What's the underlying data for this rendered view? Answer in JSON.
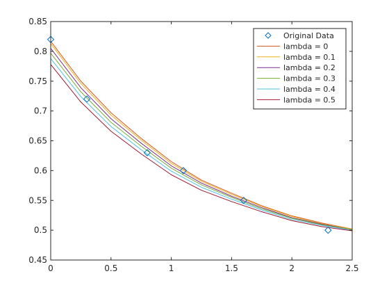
{
  "chart_data": {
    "type": "line",
    "title": "",
    "xlabel": "",
    "ylabel": "",
    "xlim": [
      0,
      2.5
    ],
    "ylim": [
      0.45,
      0.85
    ],
    "grid": false,
    "legend_position": "top-right",
    "x_ticks": [
      {
        "value": 0,
        "label": "0"
      },
      {
        "value": 0.5,
        "label": "0.5"
      },
      {
        "value": 1,
        "label": "1"
      },
      {
        "value": 1.5,
        "label": "1.5"
      },
      {
        "value": 2,
        "label": "2"
      },
      {
        "value": 2.5,
        "label": "2.5"
      }
    ],
    "y_ticks": [
      {
        "value": 0.45,
        "label": "0.45"
      },
      {
        "value": 0.5,
        "label": "0.5"
      },
      {
        "value": 0.55,
        "label": "0.55"
      },
      {
        "value": 0.6,
        "label": "0.6"
      },
      {
        "value": 0.65,
        "label": "0.65"
      },
      {
        "value": 0.7,
        "label": "0.7"
      },
      {
        "value": 0.75,
        "label": "0.75"
      },
      {
        "value": 0.8,
        "label": "0.8"
      },
      {
        "value": 0.85,
        "label": "0.85"
      }
    ],
    "scatter": {
      "name": "Original Data",
      "marker": "diamond",
      "color": "#0072bd",
      "points": [
        {
          "x": 0,
          "y": 0.82
        },
        {
          "x": 0.3,
          "y": 0.72
        },
        {
          "x": 0.8,
          "y": 0.63
        },
        {
          "x": 1.1,
          "y": 0.6
        },
        {
          "x": 1.6,
          "y": 0.55
        },
        {
          "x": 2.3,
          "y": 0.5
        }
      ]
    },
    "series": [
      {
        "name": "lambda = 0",
        "color": "#d95319",
        "x": [
          0,
          0.25,
          0.5,
          0.75,
          1.0,
          1.25,
          1.5,
          1.75,
          2.0,
          2.25,
          2.5
        ],
        "y": [
          0.817,
          0.75,
          0.697,
          0.654,
          0.615,
          0.584,
          0.562,
          0.541,
          0.524,
          0.512,
          0.502
        ]
      },
      {
        "name": "lambda = 0.1",
        "color": "#edb120",
        "x": [
          0,
          0.25,
          0.5,
          0.75,
          1.0,
          1.25,
          1.5,
          1.75,
          2.0,
          2.25,
          2.5
        ],
        "y": [
          0.813,
          0.746,
          0.693,
          0.651,
          0.612,
          0.582,
          0.56,
          0.54,
          0.523,
          0.511,
          0.502
        ]
      },
      {
        "name": "lambda = 0.2",
        "color": "#7e2f8e",
        "x": [
          0,
          0.25,
          0.5,
          0.75,
          1.0,
          1.25,
          1.5,
          1.75,
          2.0,
          2.25,
          2.5
        ],
        "y": [
          0.805,
          0.739,
          0.687,
          0.646,
          0.608,
          0.579,
          0.557,
          0.538,
          0.521,
          0.51,
          0.501
        ]
      },
      {
        "name": "lambda = 0.3",
        "color": "#77ac30",
        "x": [
          0,
          0.25,
          0.5,
          0.75,
          1.0,
          1.25,
          1.5,
          1.75,
          2.0,
          2.25,
          2.5
        ],
        "y": [
          0.797,
          0.732,
          0.681,
          0.641,
          0.604,
          0.576,
          0.555,
          0.536,
          0.52,
          0.509,
          0.501
        ]
      },
      {
        "name": "lambda = 0.4",
        "color": "#4dbeee",
        "x": [
          0,
          0.25,
          0.5,
          0.75,
          1.0,
          1.25,
          1.5,
          1.75,
          2.0,
          2.25,
          2.5
        ],
        "y": [
          0.788,
          0.724,
          0.674,
          0.635,
          0.599,
          0.572,
          0.552,
          0.534,
          0.518,
          0.508,
          0.5
        ]
      },
      {
        "name": "lambda = 0.5",
        "color": "#a2142f",
        "x": [
          0,
          0.25,
          0.5,
          0.75,
          1.0,
          1.25,
          1.5,
          1.75,
          2.0,
          2.25,
          2.5
        ],
        "y": [
          0.778,
          0.715,
          0.666,
          0.628,
          0.593,
          0.567,
          0.548,
          0.531,
          0.516,
          0.506,
          0.499
        ]
      }
    ]
  }
}
